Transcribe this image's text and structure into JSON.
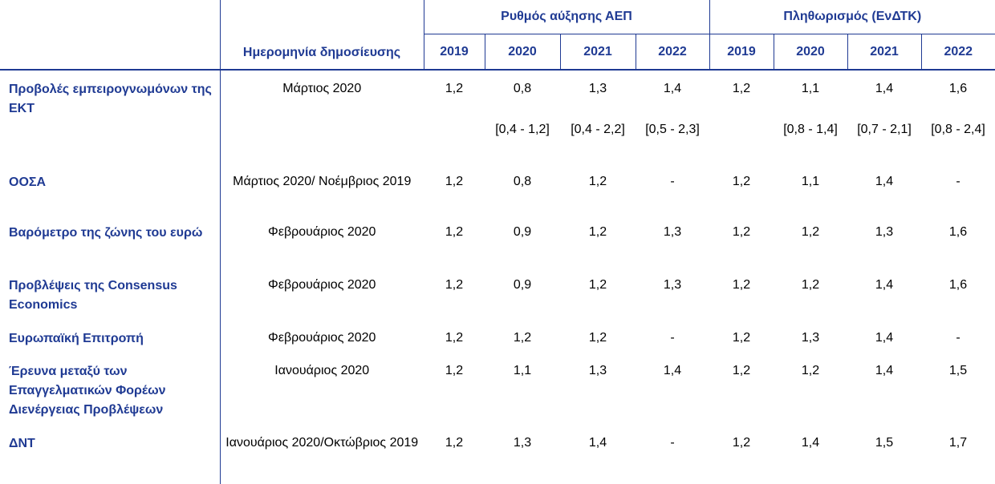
{
  "header": {
    "gdp_group": "Ρυθμός αύξησης ΑΕΠ",
    "infl_group": "Πληθωρισμός (ΕνΔΤΚ)",
    "date_col": "Ημερομηνία δημοσίευσης",
    "years": [
      "2019",
      "2020",
      "2021",
      "2022"
    ]
  },
  "rows": [
    {
      "source": "Προβολές εμπειρογνωμόνων της ΕΚΤ",
      "date": "Μάρτιος 2020",
      "gdp": [
        "1,2",
        "0,8",
        "1,3",
        "1,4"
      ],
      "infl": [
        "1,2",
        "1,1",
        "1,4",
        "1,6"
      ]
    },
    {
      "source": "",
      "date": "",
      "gdp": [
        "",
        "[0,4 - 1,2]",
        "[0,4 - 2,2]",
        "[0,5 - 2,3]"
      ],
      "infl": [
        "",
        "[0,8 - 1,4]",
        "[0,7 - 2,1]",
        "[0,8 - 2,4]"
      ]
    },
    {
      "source": "ΟΟΣΑ",
      "date": "Μάρτιος 2020/ Νοέμβριος 2019",
      "gdp": [
        "1,2",
        "0,8",
        "1,2",
        "-"
      ],
      "infl": [
        "1,2",
        "1,1",
        "1,4",
        "-"
      ]
    },
    {
      "source": "Βαρόμετρο της ζώνης του ευρώ",
      "date": "Φεβρουάριος 2020",
      "gdp": [
        "1,2",
        "0,9",
        "1,2",
        "1,3"
      ],
      "infl": [
        "1,2",
        "1,2",
        "1,3",
        "1,6"
      ]
    },
    {
      "source": "Προβλέψεις της Consensus Economics",
      "date": "Φεβρουάριος 2020",
      "gdp": [
        "1,2",
        "0,9",
        "1,2",
        "1,3"
      ],
      "infl": [
        "1,2",
        "1,2",
        "1,4",
        "1,6"
      ]
    },
    {
      "source": "Ευρωπαϊκή Επιτροπή",
      "date": "Φεβρουάριος 2020",
      "gdp": [
        "1,2",
        "1,2",
        "1,2",
        "-"
      ],
      "infl": [
        "1,2",
        "1,3",
        "1,4",
        "-"
      ]
    },
    {
      "source": "Έρευνα μεταξύ των Επαγγελματικών Φορέων Διενέργειας Προβλέψεων",
      "date": "Ιανουάριος 2020",
      "gdp": [
        "1,2",
        "1,1",
        "1,3",
        "1,4"
      ],
      "infl": [
        "1,2",
        "1,2",
        "1,4",
        "1,5"
      ]
    },
    {
      "source": "ΔΝΤ",
      "date": "Ιανουάριος 2020/Οκτώβριος 2019",
      "gdp": [
        "1,2",
        "1,3",
        "1,4",
        "-"
      ],
      "infl": [
        "1,2",
        "1,4",
        "1,5",
        "1,7"
      ]
    }
  ]
}
